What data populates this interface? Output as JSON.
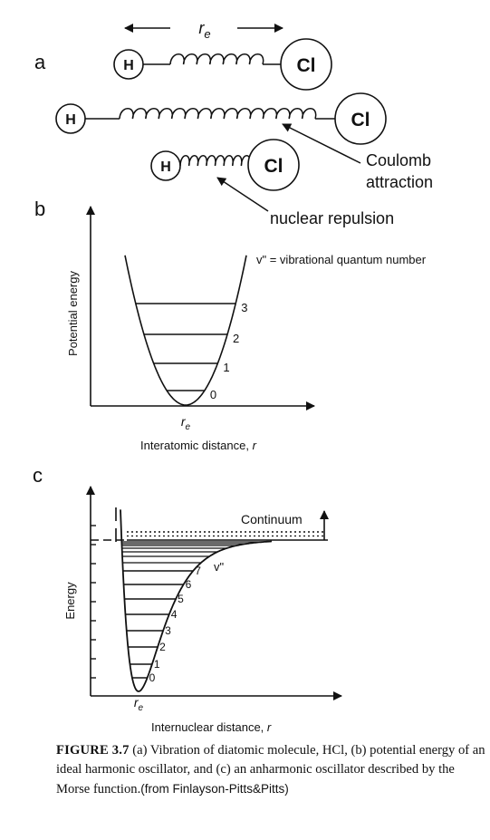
{
  "panels": {
    "a": {
      "label": "a",
      "re_symbol": "r",
      "re_sub": "e",
      "h": "H",
      "cl": "Cl",
      "coulomb_line1": "Coulomb",
      "coulomb_line2": "attraction",
      "repulsion": "nuclear repulsion"
    },
    "b": {
      "label": "b",
      "ylabel": "Potential energy",
      "xlabel_text": "Interatomic distance, ",
      "xlabel_var": "r",
      "re_symbol": "r",
      "re_sub": "e",
      "note": "v\" = vibrational quantum number",
      "levels": [
        "0",
        "1",
        "2",
        "3"
      ]
    },
    "c": {
      "label": "c",
      "ylabel": "Energy",
      "xlabel_text": "Internuclear distance, ",
      "xlabel_var": "r",
      "re_symbol": "r",
      "re_sub": "e",
      "continuum": "Continuum",
      "vlabel": "v\"",
      "levels": [
        "0",
        "1",
        "2",
        "3",
        "4",
        "5",
        "6",
        "7"
      ]
    }
  },
  "caption": {
    "figure": "FIGURE 3.7",
    "text": "  (a) Vibration of diatomic molecule, HCl, (b) potential energy of an ideal harmonic oscillator, and (c) an anharmonic oscillator described by the Morse function.",
    "source": "(from Finlayson-Pitts&Pitts)"
  }
}
